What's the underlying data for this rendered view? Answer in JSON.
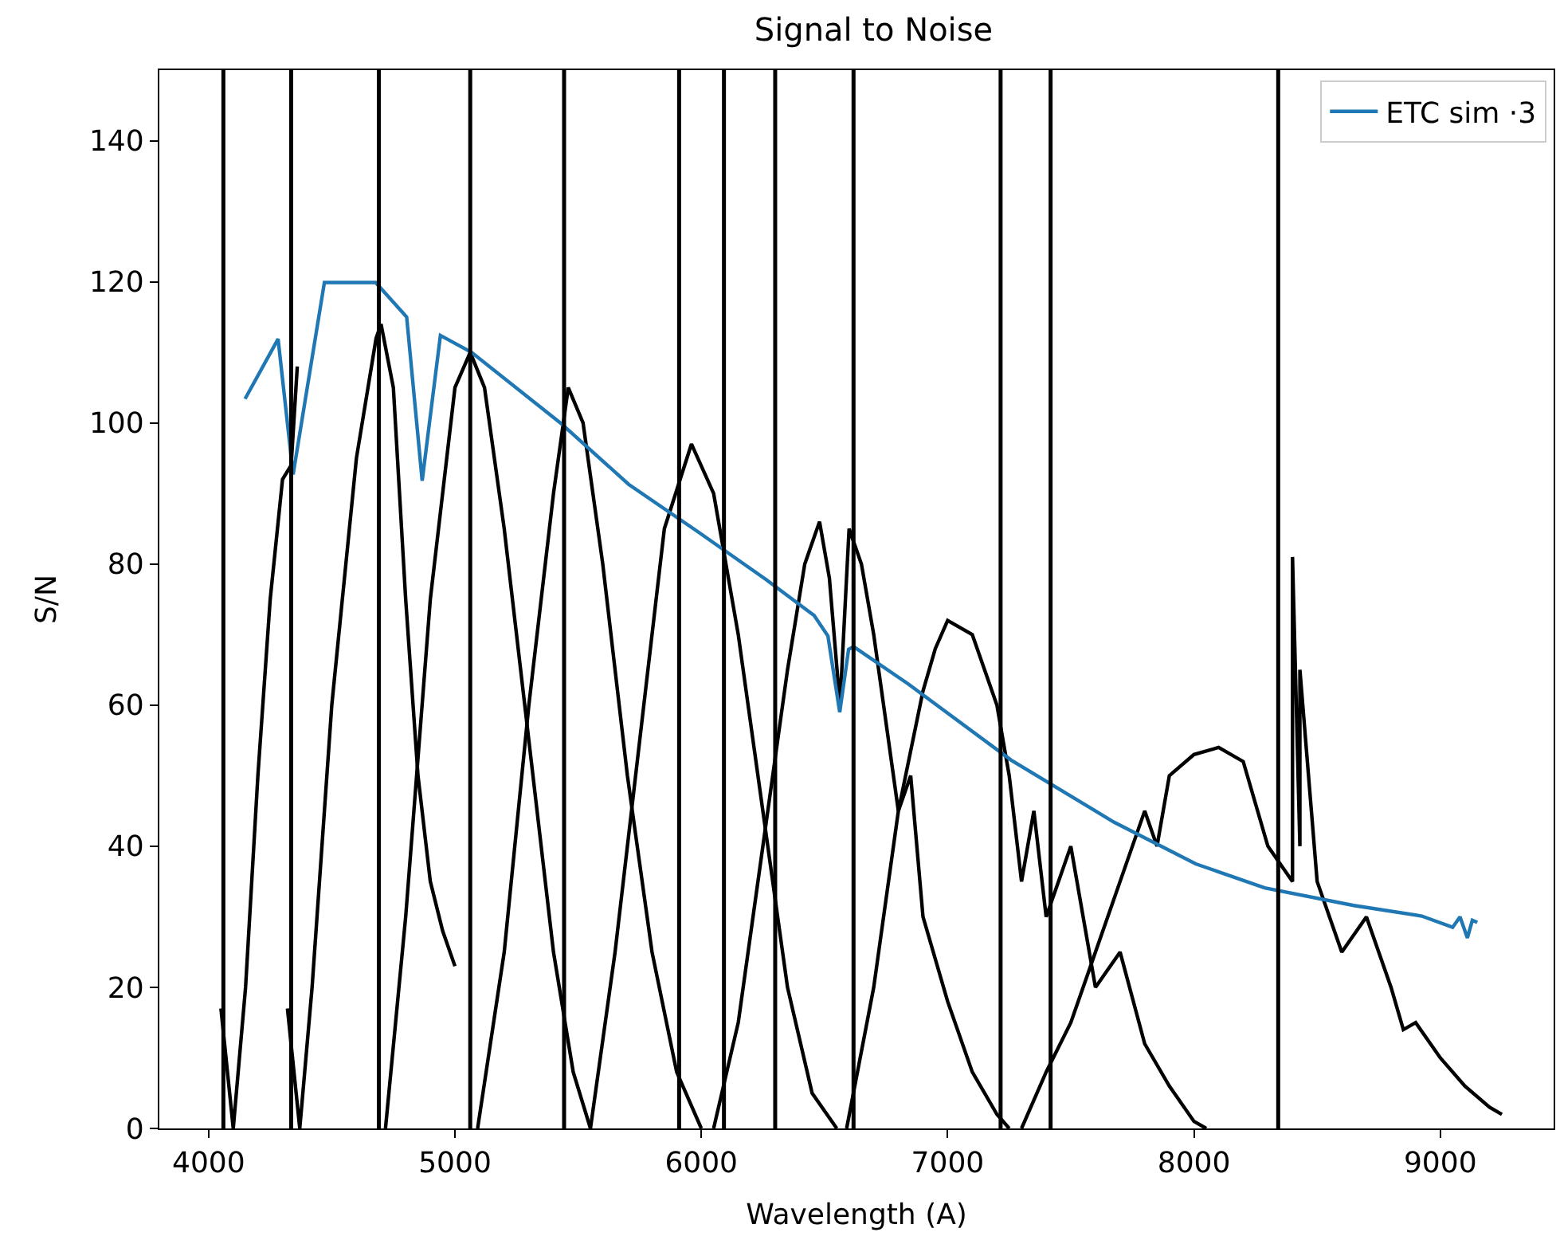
{
  "chart_data": {
    "type": "line",
    "title": "Signal to Noise",
    "xlabel": "Wavelength (A)",
    "ylabel": "S/N",
    "xlim": [
      3800,
      9460
    ],
    "ylim": [
      0,
      150
    ],
    "xticks": [
      4000,
      5000,
      6000,
      7000,
      8000,
      9000
    ],
    "yticks": [
      0,
      20,
      40,
      60,
      80,
      100,
      120,
      140
    ],
    "legend": "top right",
    "line_style": "solid",
    "marker": "none",
    "series": [
      {
        "color": "#000000",
        "x": [
          4050,
          4100,
          4150,
          4200,
          4250,
          4300,
          4335,
          4360,
          null,
          4320,
          4370,
          4420,
          4500,
          4600,
          4680,
          4700,
          4750,
          4800,
          4850,
          4900,
          4950,
          5000,
          null,
          4718,
          4800,
          4900,
          5000,
          5062,
          5120,
          5200,
          5300,
          5400,
          5480,
          5550,
          null,
          5092,
          5200,
          5300,
          5400,
          5460,
          5520,
          5600,
          5700,
          5800,
          5900,
          6000,
          null,
          5550,
          5650,
          5750,
          5850,
          5960,
          6050,
          6150,
          6250,
          6350,
          6450,
          6550,
          null,
          6050,
          6150,
          6250,
          6350,
          6420,
          6480,
          6520,
          6563,
          6600,
          6650,
          6700,
          6800,
          6850,
          6900,
          7000,
          7100,
          7200,
          7250,
          null,
          6590,
          6700,
          6800,
          6900,
          6950,
          7000,
          7100,
          7200,
          7250,
          7300,
          7350,
          7400,
          7500,
          7600,
          7700,
          7800,
          7900,
          8000,
          8050,
          null,
          7300,
          7400,
          7500,
          7600,
          7700,
          7800,
          7850,
          7900,
          8000,
          8100,
          8200,
          8300,
          8400,
          8400,
          8430,
          8430,
          8500,
          8600,
          8700,
          8800,
          8850,
          8900,
          9000,
          9100,
          9200,
          9250
        ],
        "values": [
          17,
          0,
          20,
          50,
          75,
          92,
          94,
          108,
          null,
          17,
          0,
          20,
          60,
          95,
          112,
          114,
          105,
          75,
          50,
          35,
          28,
          23,
          null,
          0,
          30,
          75,
          105,
          110,
          105,
          85,
          55,
          25,
          8,
          0,
          null,
          0,
          25,
          60,
          90,
          105,
          100,
          80,
          50,
          25,
          8,
          0,
          null,
          0,
          25,
          55,
          85,
          97,
          90,
          70,
          45,
          20,
          5,
          0,
          null,
          0,
          15,
          40,
          65,
          80,
          86,
          78,
          60,
          85,
          80,
          70,
          45,
          50,
          30,
          18,
          8,
          2,
          0,
          null,
          0,
          20,
          45,
          62,
          68,
          72,
          70,
          60,
          50,
          35,
          45,
          30,
          40,
          20,
          25,
          12,
          6,
          1,
          0,
          null,
          0,
          8,
          15,
          25,
          35,
          45,
          40,
          50,
          53,
          54,
          52,
          40,
          35,
          81,
          40,
          65,
          35,
          25,
          30,
          20,
          14,
          15,
          10,
          6,
          3,
          2
        ]
      },
      {
        "name": "ETC sim ·3",
        "color": "#1f77b4",
        "x": [
          4148,
          4282,
          4343,
          4470,
          4678,
          4804,
          4867,
          4941,
          5067,
          5428,
          5705,
          5985,
          6263,
          6458,
          6514,
          6562,
          6598,
          6618,
          6840,
          7258,
          7676,
          8007,
          8287,
          8649,
          8925,
          9050,
          9080,
          9110,
          9130,
          9150
        ],
        "values": [
          103.4,
          111.9,
          92.7,
          119.9,
          119.9,
          115,
          91.8,
          112.4,
          110,
          100,
          91.3,
          84.6,
          77.8,
          72.7,
          69.8,
          59,
          67.9,
          68.3,
          63,
          52.2,
          43.4,
          37.5,
          34.1,
          31.6,
          30.1,
          28.5,
          30,
          27,
          29.5,
          29.2
        ]
      }
    ],
    "ref_lines": [
      {
        "axis": "x",
        "value": 4060,
        "color": "#000000"
      },
      {
        "axis": "x",
        "value": 4335,
        "color": "#000000"
      },
      {
        "axis": "x",
        "value": 4691,
        "color": "#000000"
      },
      {
        "axis": "x",
        "value": 5062,
        "color": "#000000"
      },
      {
        "axis": "x",
        "value": 5443,
        "color": "#000000"
      },
      {
        "axis": "x",
        "value": 5910,
        "color": "#000000"
      },
      {
        "axis": "x",
        "value": 6092,
        "color": "#000000"
      },
      {
        "axis": "x",
        "value": 6300,
        "color": "#000000"
      },
      {
        "axis": "x",
        "value": 6618,
        "color": "#000000"
      },
      {
        "axis": "x",
        "value": 7215,
        "color": "#000000"
      },
      {
        "axis": "x",
        "value": 7418,
        "color": "#000000"
      },
      {
        "axis": "x",
        "value": 8342,
        "color": "#000000"
      }
    ]
  }
}
